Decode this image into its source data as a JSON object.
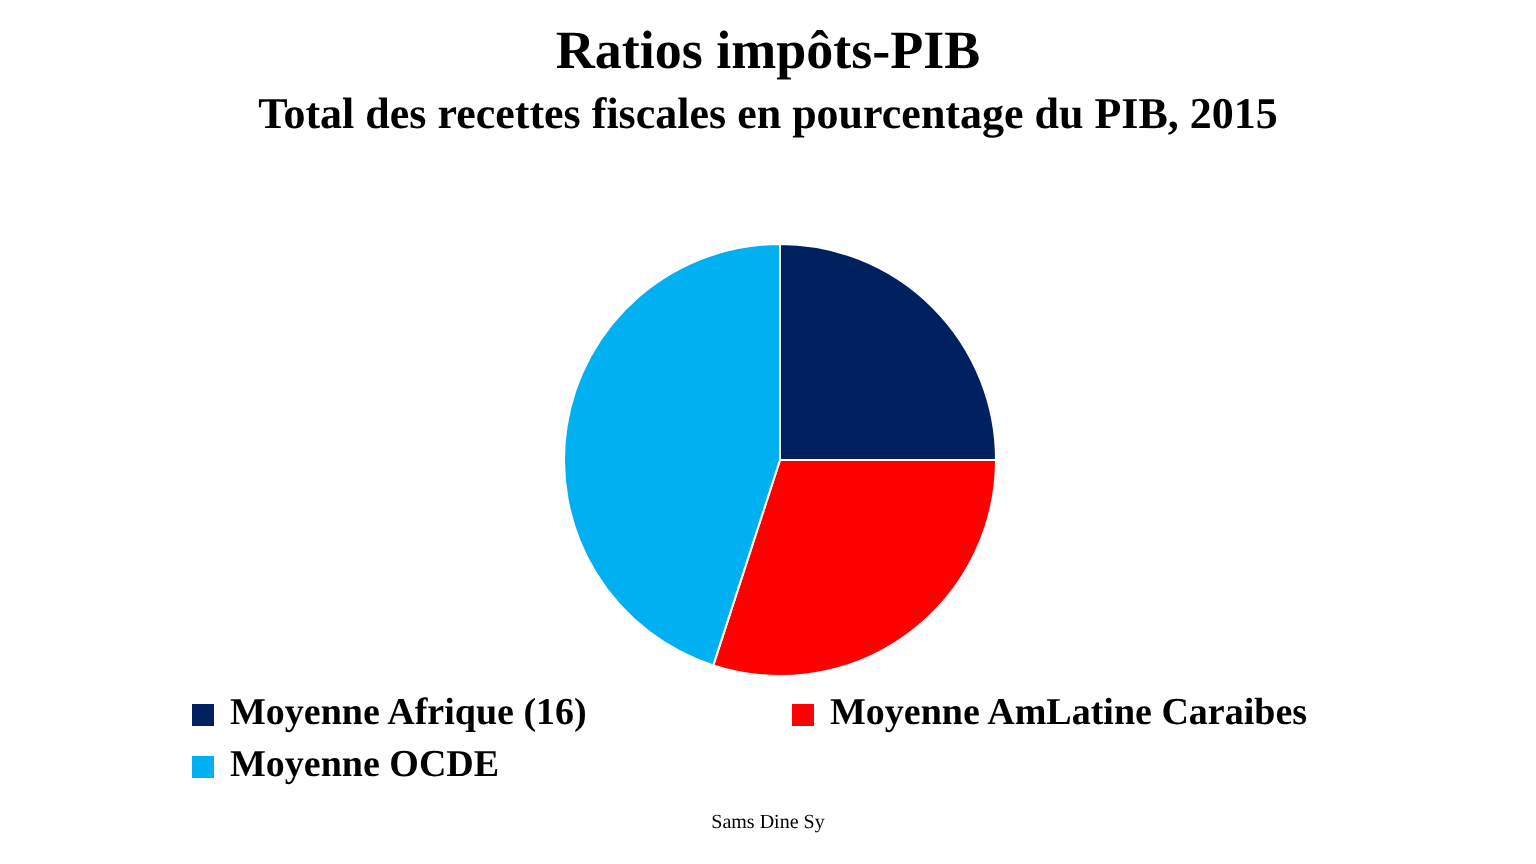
{
  "chart_data": {
    "type": "pie",
    "title": "Ratios impôts-PIB",
    "subtitle": "Total des recettes fiscales en pourcentage du PIB, 2015",
    "categories": [
      "Moyenne Afrique (16)",
      "Moyenne AmLatine Caraibes",
      "Moyenne OCDE"
    ],
    "values": [
      25,
      30,
      45
    ],
    "colors": [
      "#002060",
      "#ff0000",
      "#00b0f0"
    ],
    "legend": "bottom",
    "annotations": [
      "Sams Dine Sy"
    ]
  }
}
